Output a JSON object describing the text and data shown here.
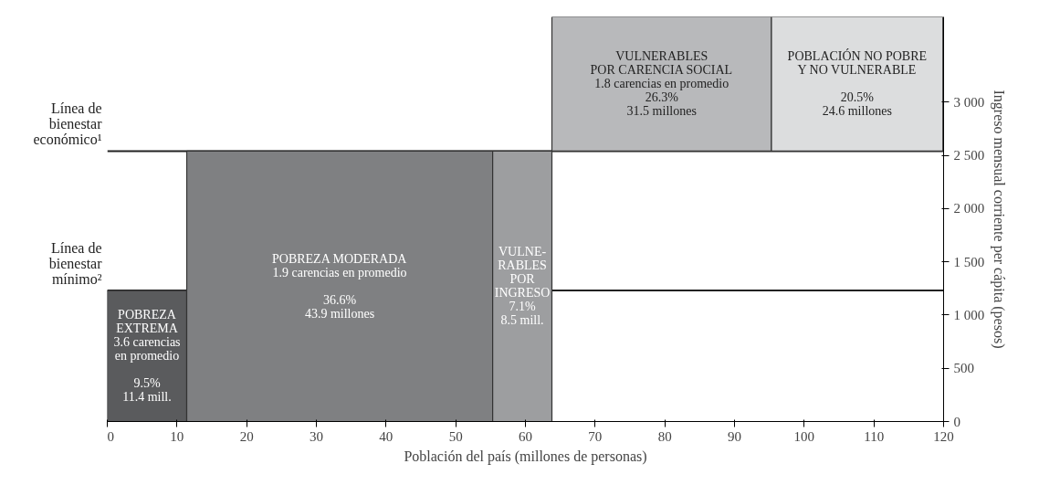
{
  "chart_data": {
    "type": "histogram",
    "bins": [
      0,
      11.4,
      55.3,
      63.8,
      95.3,
      119.9
    ],
    "values": [
      1230,
      2540,
      2540,
      1260,
      1260
    ],
    "base": [
      0,
      0,
      0,
      2540,
      2540
    ],
    "colors": [
      "#5a5b5d",
      "#7f8082",
      "#9d9ea0",
      "#b8b9bb",
      "#dcddde"
    ],
    "xlabel": "Población del país (millones de personas)",
    "ylabel": "Ingreso mensual corriente per cápita (pesos)",
    "xlim": [
      0,
      120
    ],
    "xticks": [
      0,
      10,
      20,
      30,
      40,
      50,
      60,
      70,
      80,
      90,
      100,
      110,
      120
    ],
    "ylim": [
      0,
      3800
    ],
    "yticks": [
      0,
      500,
      {
        "value": 1000,
        "label": "1 000"
      },
      {
        "value": 1500,
        "label": "1 500"
      },
      {
        "value": 2000,
        "label": "2 000"
      },
      {
        "value": 2500,
        "label": "2 500"
      },
      {
        "value": 3000,
        "label": "3 000"
      }
    ],
    "ref_lines": [
      {
        "axis": "y",
        "value": 2540,
        "label": "Línea de\nbienestar\neconómico¹"
      },
      {
        "axis": "y",
        "value": 1230,
        "label": "Línea de\nbienestar\nmínimo²"
      }
    ],
    "annotations": [
      "POBREZA\nEXTREMA\n3.6 carencias\nen promedio\n\n9.5%\n11.4 mill.",
      "POBREZA MODERADA\n1.9 carencias en promedio\n\n36.6%\n43.9 millones",
      "VULNE-\nRABLES\nPOR\nINGRESO\n7.1%\n8.5 mill.",
      "VULNERABLES\nPOR CARENCIA SOCIAL\n1.8 carencias en promedio\n26.3%\n31.5 millones",
      "POBLACIÓN NO POBRE\nY NO VULNERABLE\n\n20.5%\n24.6 millones"
    ],
    "grid": false
  }
}
